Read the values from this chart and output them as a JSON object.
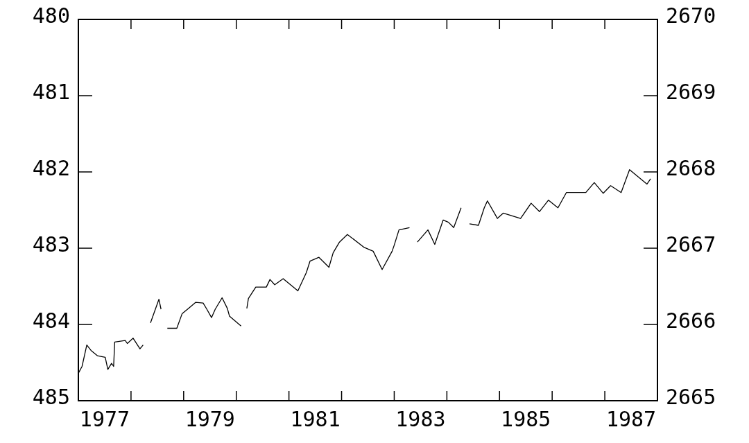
{
  "chart_data": {
    "type": "line",
    "x": [
      1977.0,
      1977.07,
      1977.16,
      1977.24,
      1977.36,
      1977.51,
      1977.56,
      1977.63,
      1977.67,
      1977.69,
      1977.89,
      1977.93,
      1978.04,
      1978.17,
      1978.23,
      1978.3,
      1978.37,
      1978.53,
      1978.57,
      1978.62,
      1978.69,
      1978.87,
      1978.97,
      1979.09,
      1979.23,
      1979.37,
      1979.44,
      1979.53,
      1979.6,
      1979.73,
      1979.83,
      1979.87,
      1980.09,
      1980.15,
      1980.2,
      1980.23,
      1980.37,
      1980.57,
      1980.64,
      1980.73,
      1980.89,
      1981.17,
      1981.33,
      1981.4,
      1981.57,
      1981.76,
      1981.84,
      1981.96,
      1982.11,
      1982.43,
      1982.6,
      1982.77,
      1982.96,
      1983.0,
      1983.09,
      1983.29,
      1983.35,
      1983.44,
      1983.64,
      1983.77,
      1983.93,
      1984.03,
      1984.13,
      1984.27,
      1984.35,
      1984.43,
      1984.6,
      1984.71,
      1984.77,
      1984.96,
      1985.07,
      1985.4,
      1985.6,
      1985.76,
      1985.93,
      1986.11,
      1986.27,
      1986.64,
      1986.8,
      1986.97,
      1987.11,
      1987.31,
      1987.47,
      1987.8,
      1987.87
    ],
    "series": [
      {
        "color": "#000000",
        "values": [
          484.64,
          484.55,
          484.27,
          484.34,
          484.41,
          484.43,
          484.59,
          484.51,
          484.55,
          484.23,
          484.21,
          484.25,
          484.18,
          484.32,
          484.27,
          null,
          483.98,
          483.67,
          483.8,
          null,
          484.05,
          484.05,
          483.86,
          483.79,
          483.71,
          483.72,
          483.8,
          483.91,
          483.8,
          483.65,
          483.79,
          483.89,
          484.02,
          null,
          483.79,
          483.66,
          483.51,
          483.51,
          483.41,
          483.48,
          483.4,
          483.56,
          483.32,
          483.17,
          483.12,
          483.25,
          483.06,
          482.92,
          482.82,
          482.99,
          483.04,
          483.28,
          483.04,
          482.96,
          482.76,
          482.73,
          null,
          482.92,
          482.76,
          482.95,
          482.63,
          482.66,
          482.73,
          482.47,
          null,
          482.68,
          482.7,
          482.47,
          482.38,
          482.61,
          482.54,
          482.61,
          482.41,
          482.52,
          482.37,
          482.47,
          482.27,
          482.27,
          482.14,
          482.28,
          482.18,
          482.27,
          481.97,
          482.16,
          482.09
        ]
      }
    ],
    "xlim": [
      1977,
      1988
    ],
    "xticks": [
      {
        "value": 1977.5,
        "label": "1977"
      },
      {
        "value": 1978,
        "label": null
      },
      {
        "value": 1979,
        "label": null
      },
      {
        "value": 1979.5,
        "label": "1979"
      },
      {
        "value": 1980,
        "label": null
      },
      {
        "value": 1981,
        "label": null
      },
      {
        "value": 1981.5,
        "label": "1981"
      },
      {
        "value": 1982,
        "label": null
      },
      {
        "value": 1983,
        "label": null
      },
      {
        "value": 1983.5,
        "label": "1983"
      },
      {
        "value": 1984,
        "label": null
      },
      {
        "value": 1985,
        "label": null
      },
      {
        "value": 1985.5,
        "label": "1985"
      },
      {
        "value": 1986,
        "label": null
      },
      {
        "value": 1987,
        "label": null
      },
      {
        "value": 1987.5,
        "label": "1987"
      }
    ],
    "ylim": [
      485,
      480
    ],
    "yticks": [
      480,
      481,
      482,
      483,
      484,
      485
    ],
    "y2lim": [
      2665,
      2670
    ],
    "y2ticks": [
      2665,
      2666,
      2667,
      2668,
      2669,
      2670
    ]
  }
}
